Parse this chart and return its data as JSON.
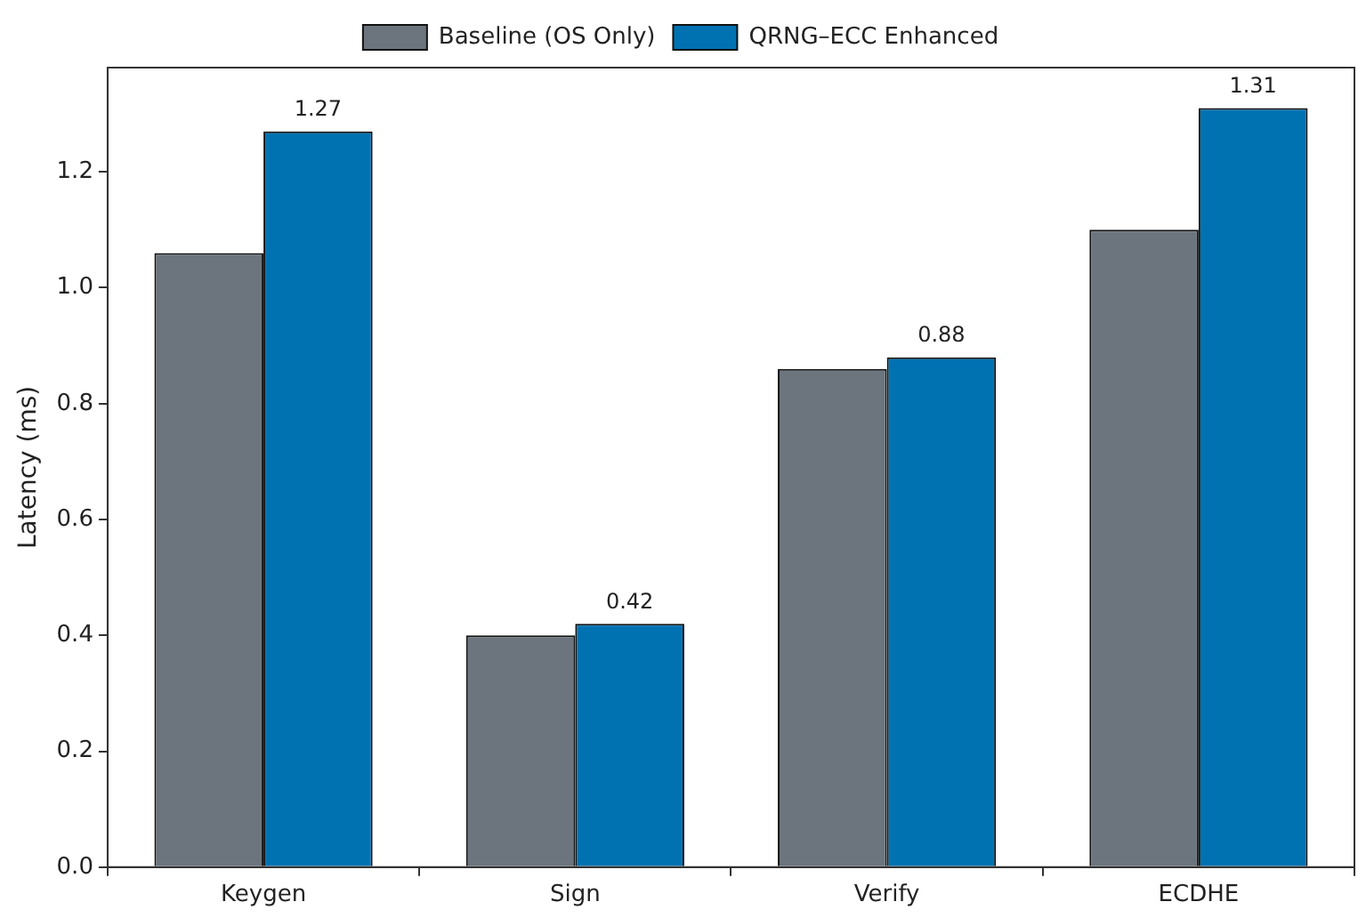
{
  "chart_data": {
    "type": "bar",
    "ylabel": "Latency (ms)",
    "categories": [
      "Keygen",
      "Sign",
      "Verify",
      "ECDHE"
    ],
    "series": [
      {
        "name": "Baseline (OS Only)",
        "color": "#6c757d",
        "values": [
          1.06,
          0.4,
          0.86,
          1.1
        ]
      },
      {
        "name": "QRNG–ECC Enhanced",
        "color": "#0072b2",
        "values": [
          1.27,
          0.42,
          0.88,
          1.31
        ],
        "value_labels": [
          "1.27",
          "0.42",
          "0.88",
          "1.31"
        ]
      }
    ],
    "ylim": [
      0,
      1.38
    ],
    "yticks": [
      {
        "value": 0,
        "label": "0.0"
      },
      0.2,
      0.4,
      0.6,
      0.8,
      {
        "value": 1,
        "label": "1.0"
      },
      1.2
    ],
    "grid": false,
    "legend": "top"
  }
}
